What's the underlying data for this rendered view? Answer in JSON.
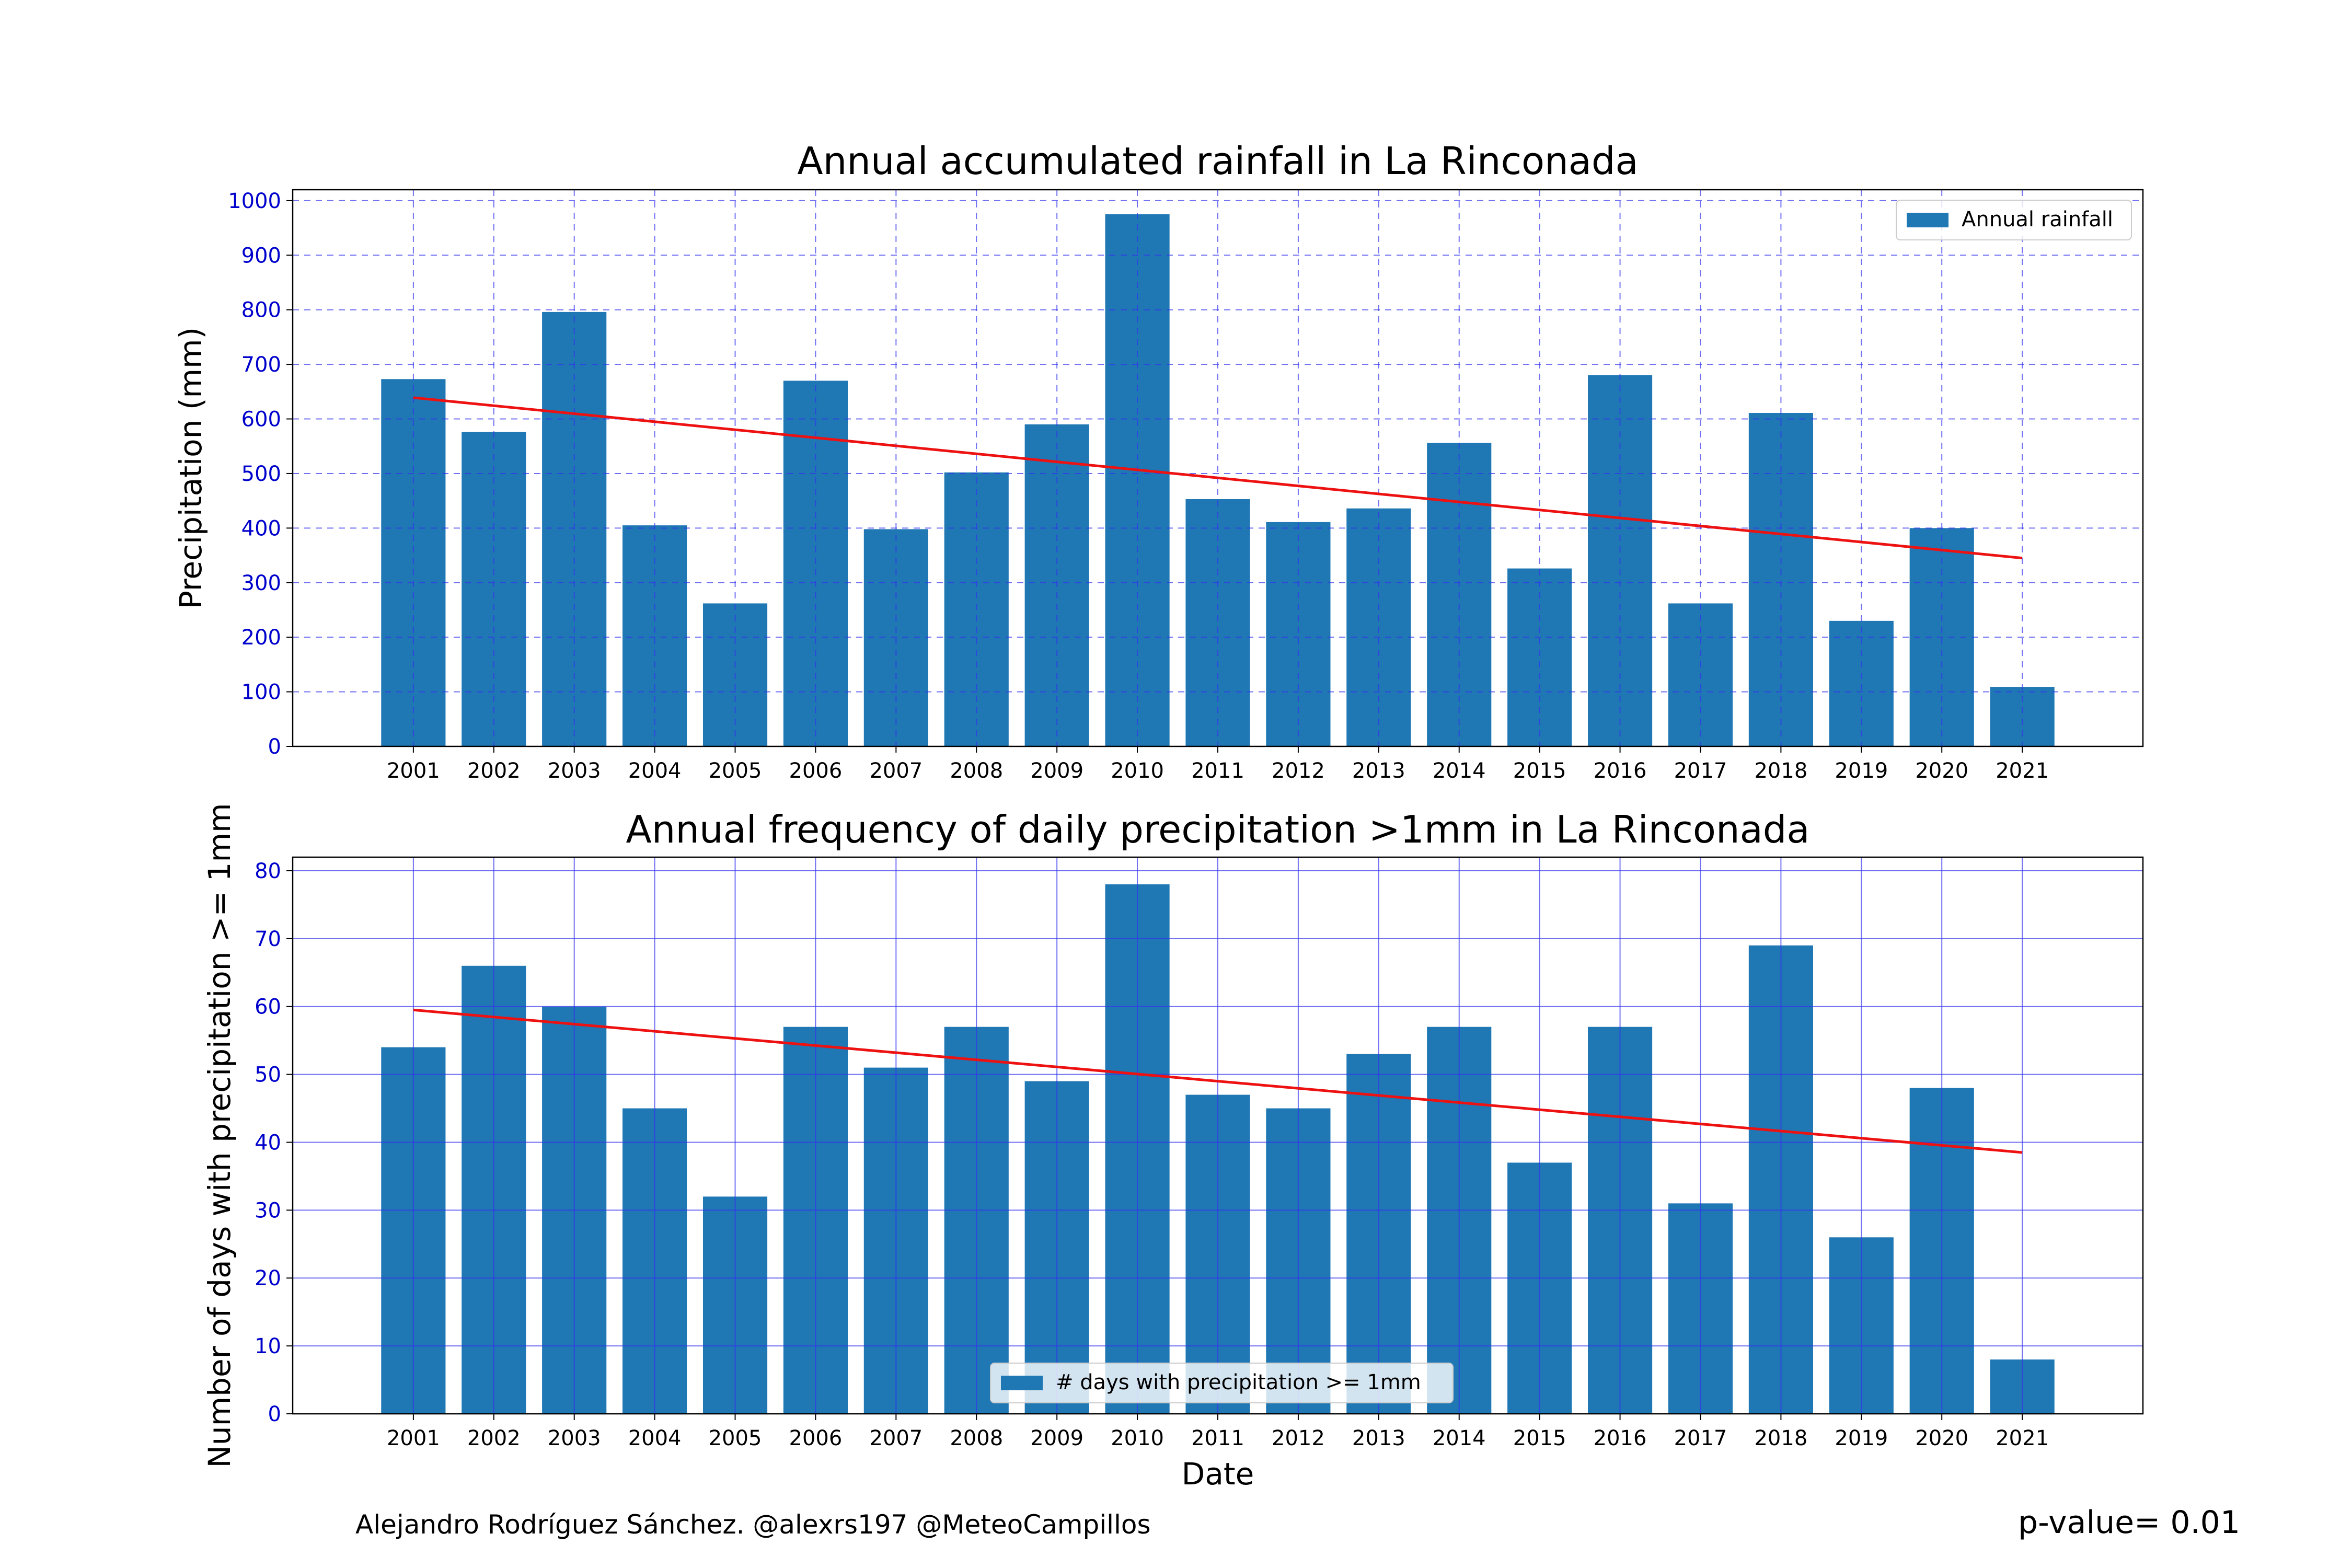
{
  "chart_data": [
    {
      "type": "bar",
      "title": "Annual accumulated rainfall in La Rinconada",
      "xlabel": "",
      "ylabel": "Precipitation (mm)",
      "ylim": [
        0,
        1020
      ],
      "yticks": [
        0,
        100,
        200,
        300,
        400,
        500,
        600,
        700,
        800,
        900,
        1000
      ],
      "categories": [
        "2001",
        "2002",
        "2003",
        "2004",
        "2005",
        "2006",
        "2007",
        "2008",
        "2009",
        "2010",
        "2011",
        "2012",
        "2013",
        "2014",
        "2015",
        "2016",
        "2017",
        "2018",
        "2019",
        "2020",
        "2021"
      ],
      "series": [
        {
          "name": "Annual rainfall",
          "values": [
            673,
            576,
            796,
            405,
            262,
            670,
            398,
            502,
            590,
            975,
            453,
            411,
            436,
            556,
            326,
            680,
            262,
            611,
            230,
            400,
            109
          ]
        }
      ],
      "trend": {
        "start": 639,
        "end": 345
      },
      "grid": "dashed",
      "legend": "top-right",
      "colors": {
        "bar": "#1f77b4",
        "trend": "#ee1111",
        "grid": "#3333ee",
        "tick": "#0000cc"
      }
    },
    {
      "type": "bar",
      "title": "Annual frequency of daily precipitation >1mm in La Rinconada",
      "xlabel": "Date",
      "ylabel": "Number of days with precipitation >= 1mm",
      "ylim": [
        0,
        82
      ],
      "yticks": [
        0,
        10,
        20,
        30,
        40,
        50,
        60,
        70,
        80
      ],
      "categories": [
        "2001",
        "2002",
        "2003",
        "2004",
        "2005",
        "2006",
        "2007",
        "2008",
        "2009",
        "2010",
        "2011",
        "2012",
        "2013",
        "2014",
        "2015",
        "2016",
        "2017",
        "2018",
        "2019",
        "2020",
        "2021"
      ],
      "series": [
        {
          "name": "# days with precipitation >= 1mm",
          "values": [
            54,
            66,
            60,
            45,
            32,
            57,
            51,
            57,
            49,
            78,
            47,
            45,
            53,
            57,
            37,
            57,
            31,
            69,
            26,
            48,
            8
          ]
        }
      ],
      "trend": {
        "start": 59.5,
        "end": 38.5
      },
      "grid": "solid",
      "legend": "bottom-center",
      "colors": {
        "bar": "#1f77b4",
        "trend": "#ee1111",
        "grid": "#3333ee",
        "tick": "#0000cc"
      }
    }
  ],
  "footer": {
    "author": "Alejandro Rodríguez Sánchez. @alexrs197 @MeteoCampillos",
    "pvalue": "p-value= 0.01"
  }
}
